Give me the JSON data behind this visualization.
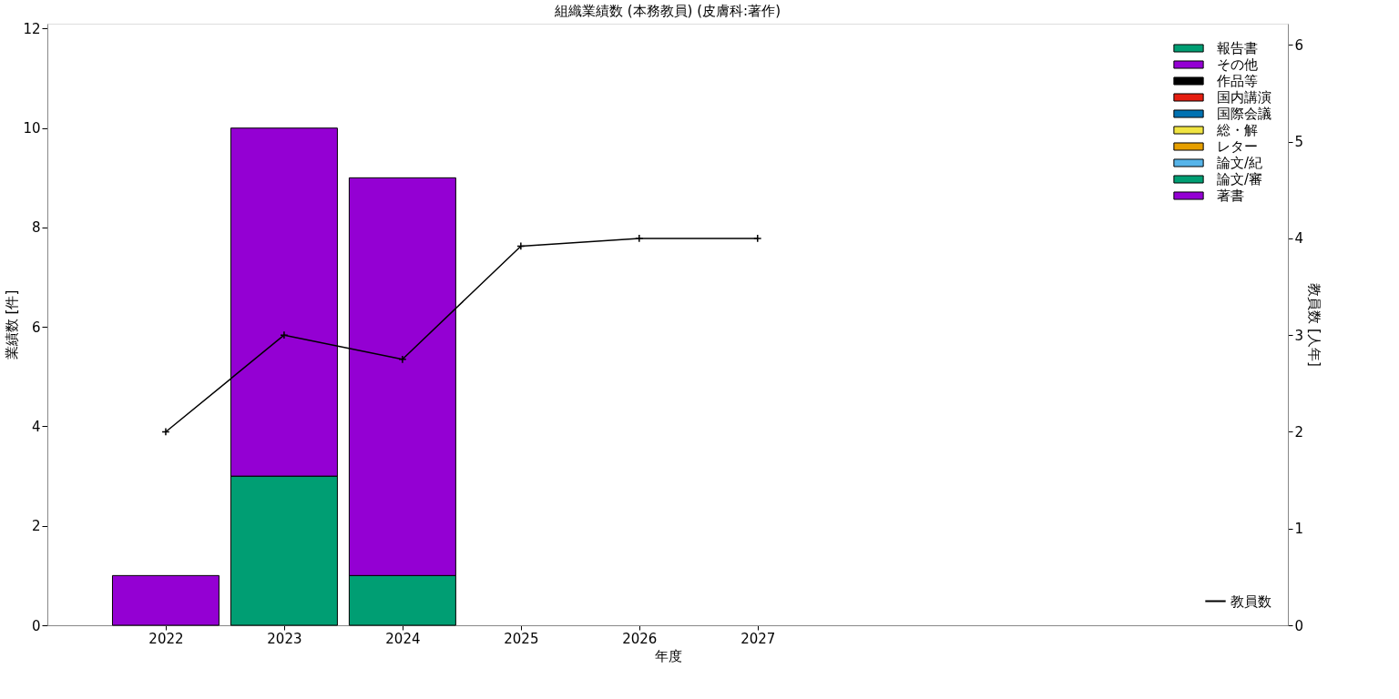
{
  "chart_data": {
    "type": "bar",
    "title": "組織業績数 (本務教員) (皮膚科:著作)",
    "xlabel": "年度",
    "ylabel": "業績数 [件]",
    "y2label": "教員数 [人年]",
    "x": [
      2022,
      2023,
      2024,
      2025,
      2026,
      2027
    ],
    "xlim": [
      2021.0,
      2031.48
    ],
    "xticks": [
      2022,
      2023,
      2024,
      2025,
      2026,
      2027
    ],
    "ylim": [
      0,
      12.1
    ],
    "yticks": [
      0,
      2,
      4,
      6,
      8,
      10,
      12
    ],
    "y2lim": [
      0,
      6.22
    ],
    "y2ticks": [
      0,
      1,
      2,
      3,
      4,
      5,
      6
    ],
    "stacked": true,
    "grid": false,
    "legend": "right",
    "series": [
      {
        "name": "著書",
        "color": "#9400d3",
        "values": [
          1,
          null,
          null,
          null,
          null,
          null
        ]
      },
      {
        "name": "論文/審",
        "color": "#009e73",
        "values": [
          null,
          3,
          1,
          null,
          null,
          null
        ]
      },
      {
        "name": "論文/紀",
        "color": "#56b4e9",
        "values": [
          null,
          null,
          null,
          null,
          null,
          null
        ]
      },
      {
        "name": "レター",
        "color": "#e69f00",
        "values": [
          null,
          null,
          null,
          null,
          null,
          null
        ]
      },
      {
        "name": "総・解",
        "color": "#f0e442",
        "values": [
          null,
          null,
          null,
          null,
          null,
          null
        ]
      },
      {
        "name": "国際会議",
        "color": "#0072b2",
        "values": [
          null,
          null,
          null,
          null,
          null,
          null
        ]
      },
      {
        "name": "国内講演",
        "color": "#e51e10",
        "values": [
          null,
          null,
          null,
          null,
          null,
          null
        ]
      },
      {
        "name": "作品等",
        "color": "#000000",
        "values": [
          null,
          null,
          null,
          null,
          null,
          null
        ]
      },
      {
        "name": "その他",
        "color": "#9400d3",
        "values": [
          null,
          7,
          8,
          null,
          null,
          null
        ]
      },
      {
        "name": "報告書",
        "color": "#009e73",
        "values": [
          null,
          null,
          null,
          null,
          null,
          null
        ]
      },
      {
        "name": "教員数",
        "type": "line",
        "axis": "y2",
        "color": "#000000",
        "marker": "cross",
        "line_style": "solid",
        "values": [
          2,
          3,
          2.75,
          3.92,
          4,
          4
        ]
      }
    ]
  }
}
